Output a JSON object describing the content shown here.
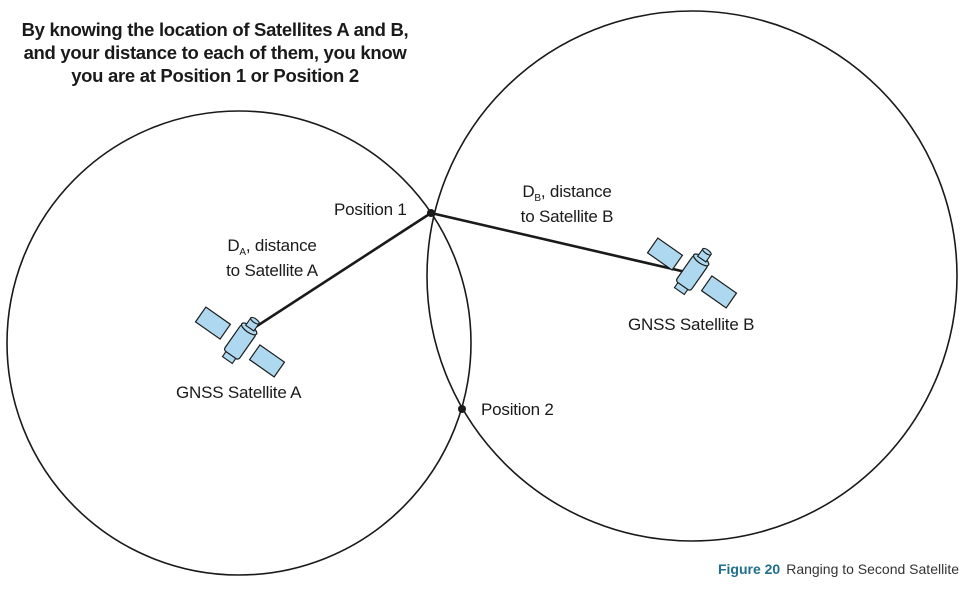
{
  "headline": {
    "line1": "By knowing the location of Satellites A and B,",
    "line2": "and your distance to each of them, you know",
    "line3": "you are at Position 1 or Position 2"
  },
  "positions": {
    "p1": "Position 1",
    "p2": "Position 2"
  },
  "distance_a": {
    "symbol": "D",
    "subscript": "A",
    "rest": ", distance",
    "line2": "to Satellite A"
  },
  "distance_b": {
    "symbol": "D",
    "subscript": "B",
    "rest": ", distance",
    "line2": "to Satellite B"
  },
  "satellites": {
    "a": "GNSS Satellite A",
    "b": "GNSS Satellite B"
  },
  "caption": {
    "figure": "Figure 20",
    "title": "Ranging to Second Satellite"
  },
  "colors": {
    "satellite_panel": "#aed8ef",
    "line": "#1a1a1a",
    "caption_accent": "#1f6f8b"
  }
}
